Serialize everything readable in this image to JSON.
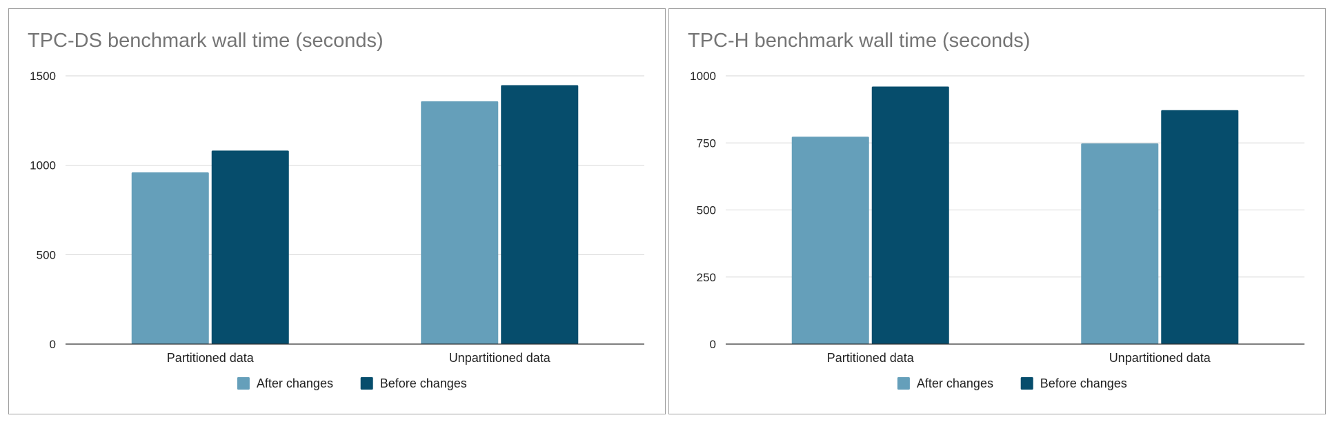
{
  "chart_data": [
    {
      "type": "bar",
      "title": "TPC-DS benchmark wall time (seconds)",
      "xlabel": "",
      "ylabel": "",
      "categories": [
        "Partitioned data",
        "Unpartitioned data"
      ],
      "series": [
        {
          "name": "After changes",
          "color": "#659fba",
          "values": [
            960,
            1358
          ]
        },
        {
          "name": "Before changes",
          "color": "#064d6c",
          "values": [
            1082,
            1448
          ]
        }
      ],
      "ylim": [
        0,
        1500
      ],
      "yticks": [
        0,
        500,
        1000,
        1500
      ],
      "grid": true,
      "legend": "bottom"
    },
    {
      "type": "bar",
      "title": "TPC-H benchmark wall time (seconds)",
      "xlabel": "",
      "ylabel": "",
      "categories": [
        "Partitioned data",
        "Unpartitioned data"
      ],
      "series": [
        {
          "name": "After changes",
          "color": "#659fba",
          "values": [
            773,
            748
          ]
        },
        {
          "name": "Before changes",
          "color": "#064d6c",
          "values": [
            960,
            872
          ]
        }
      ],
      "ylim": [
        0,
        1000
      ],
      "yticks": [
        0,
        250,
        500,
        750,
        1000
      ],
      "grid": true,
      "legend": "bottom"
    }
  ]
}
